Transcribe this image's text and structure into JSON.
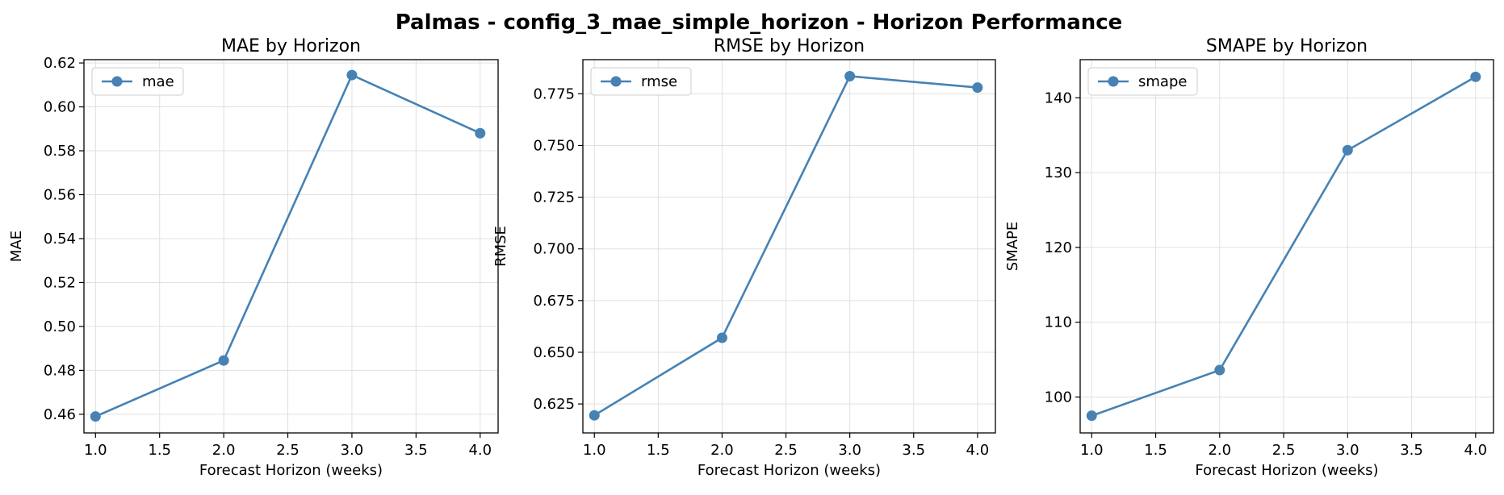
{
  "figure_title": "Palmas - config_3_mae_simple_horizon - Horizon Performance",
  "colors": {
    "line": "#4682b4",
    "grid": "#e0e0e0",
    "axes": "#000000"
  },
  "chart_data": [
    {
      "type": "line",
      "title": "MAE by Horizon",
      "xlabel": "Forecast Horizon (weeks)",
      "ylabel": "MAE",
      "x": [
        1.0,
        2.0,
        3.0,
        4.0
      ],
      "series": [
        {
          "name": "mae",
          "values": [
            0.459,
            0.4845,
            0.6145,
            0.588
          ]
        }
      ],
      "xlim": [
        0.91,
        4.14
      ],
      "ylim": [
        0.4515,
        0.6215
      ],
      "xticks": [
        "1.0",
        "1.5",
        "2.0",
        "2.5",
        "3.0",
        "3.5",
        "4.0"
      ],
      "yticks": [
        "0.46",
        "0.48",
        "0.50",
        "0.52",
        "0.54",
        "0.56",
        "0.58",
        "0.60",
        "0.62"
      ],
      "grid": true,
      "legend": "upper-left"
    },
    {
      "type": "line",
      "title": "RMSE by Horizon",
      "xlabel": "Forecast Horizon (weeks)",
      "ylabel": "RMSE",
      "x": [
        1.0,
        2.0,
        3.0,
        4.0
      ],
      "series": [
        {
          "name": "rmse",
          "values": [
            0.6195,
            0.657,
            0.7835,
            0.778
          ]
        }
      ],
      "xlim": [
        0.91,
        4.14
      ],
      "ylim": [
        0.611,
        0.7915
      ],
      "xticks": [
        "1.0",
        "1.5",
        "2.0",
        "2.5",
        "3.0",
        "3.5",
        "4.0"
      ],
      "yticks": [
        "0.625",
        "0.650",
        "0.675",
        "0.700",
        "0.725",
        "0.750",
        "0.775"
      ],
      "grid": true,
      "legend": "upper-left"
    },
    {
      "type": "line",
      "title": "SMAPE by Horizon",
      "xlabel": "Forecast Horizon (weeks)",
      "ylabel": "SMAPE",
      "x": [
        1.0,
        2.0,
        3.0,
        4.0
      ],
      "series": [
        {
          "name": "smape",
          "values": [
            97.5,
            103.6,
            133.0,
            142.8
          ]
        }
      ],
      "xlim": [
        0.91,
        4.14
      ],
      "ylim": [
        95.2,
        145.1
      ],
      "xticks": [
        "1.0",
        "1.5",
        "2.0",
        "2.5",
        "3.0",
        "3.5",
        "4.0"
      ],
      "yticks": [
        "100",
        "110",
        "120",
        "130",
        "140"
      ],
      "grid": true,
      "legend": "upper-left"
    }
  ]
}
